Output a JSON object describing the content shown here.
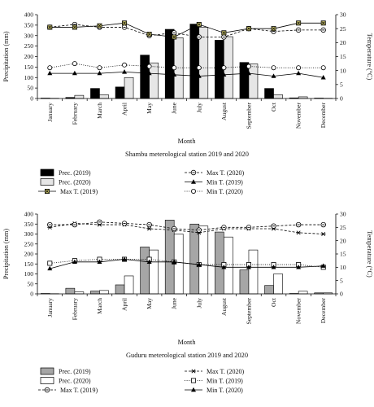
{
  "chart_data": [
    {
      "type": "bar",
      "title": "Shambu meterological station 2019 and 2020",
      "xlabel": "Month",
      "ylabel": "Precipitation (mm)",
      "y2label": "Temperature (°C)",
      "ylim": [
        0,
        400
      ],
      "y2lim": [
        0,
        30
      ],
      "categories": [
        "January",
        "February",
        "March",
        "April",
        "May",
        "June",
        "July",
        "August",
        "September",
        "Oct",
        "November",
        "December"
      ],
      "bar_series": [
        {
          "name": "Prec. (2019)",
          "color": "#000000",
          "values": [
            2,
            5,
            48,
            55,
            207,
            330,
            355,
            278,
            172,
            48,
            3,
            2
          ]
        },
        {
          "name": "Prec. (2020)",
          "color": "#e6e6e6",
          "values": [
            1,
            15,
            18,
            100,
            170,
            290,
            340,
            295,
            165,
            18,
            8,
            1
          ]
        }
      ],
      "line_series": [
        {
          "name": "Max T. (2020)",
          "style": "dashed",
          "marker": "circle-dash",
          "values": [
            25.5,
            26.5,
            25.5,
            25.5,
            22.5,
            23.5,
            22,
            22,
            25,
            24,
            24.5,
            24.5
          ]
        },
        {
          "name": "Max T. (2019)",
          "style": "solid",
          "marker": "square-x",
          "values": [
            25.5,
            25.5,
            26,
            27,
            23,
            22,
            26.5,
            23.5,
            25,
            25,
            27,
            27
          ]
        },
        {
          "name": "Min T. (2019)",
          "style": "solid",
          "marker": "triangle",
          "values": [
            9,
            9,
            9,
            9.5,
            9,
            8.5,
            8,
            8.5,
            9,
            8,
            9,
            7.5
          ]
        },
        {
          "name": "Min T. (2020)",
          "style": "dotted",
          "marker": "circle",
          "values": [
            11,
            12.5,
            11,
            12,
            11.5,
            11,
            11,
            11,
            11.5,
            11,
            11,
            11
          ]
        }
      ],
      "legend_position": "bottom"
    },
    {
      "type": "bar",
      "title": "Guduru meterological station 2019 and 2020",
      "xlabel": "Month",
      "ylabel": "Precipitation (mm)",
      "y2label": "Temperature (°C)",
      "ylim": [
        0,
        400
      ],
      "y2lim": [
        0,
        30
      ],
      "categories": [
        "January",
        "February",
        "March",
        "April",
        "May",
        "June",
        "July",
        "August",
        "September",
        "Oct",
        "November",
        "December"
      ],
      "bar_series": [
        {
          "name": "Prec. (2019)",
          "color": "#a6a6a6",
          "values": [
            2,
            28,
            14,
            45,
            235,
            370,
            350,
            310,
            120,
            42,
            2,
            5
          ]
        },
        {
          "name": "Prec. (2020)",
          "color": "#ffffff",
          "values": [
            1,
            10,
            17,
            90,
            220,
            300,
            340,
            285,
            220,
            100,
            13,
            5
          ]
        }
      ],
      "line_series": [
        {
          "name": "Max T. (2020)",
          "style": "dashed",
          "marker": "star",
          "values": [
            25,
            26.5,
            26,
            26,
            24.5,
            24,
            23,
            24.5,
            24.5,
            24.5,
            23,
            22.5
          ]
        },
        {
          "name": "Min T. (2019)",
          "style": "dotted",
          "marker": "square",
          "values": [
            11.5,
            12.5,
            13,
            13,
            13,
            12,
            11,
            11,
            11,
            11,
            11,
            10
          ]
        },
        {
          "name": "Max T. (2019)",
          "style": "dashed",
          "marker": "circle-dash",
          "values": [
            26,
            26,
            27,
            26.5,
            26,
            24.5,
            24,
            25,
            25,
            25.5,
            26,
            26
          ]
        },
        {
          "name": "Min T. (2020)",
          "style": "solid",
          "marker": "triangle",
          "values": [
            9.5,
            12,
            12,
            13,
            12,
            12,
            11,
            10,
            10,
            10,
            10,
            10.5
          ]
        }
      ],
      "legend_position": "bottom"
    }
  ]
}
